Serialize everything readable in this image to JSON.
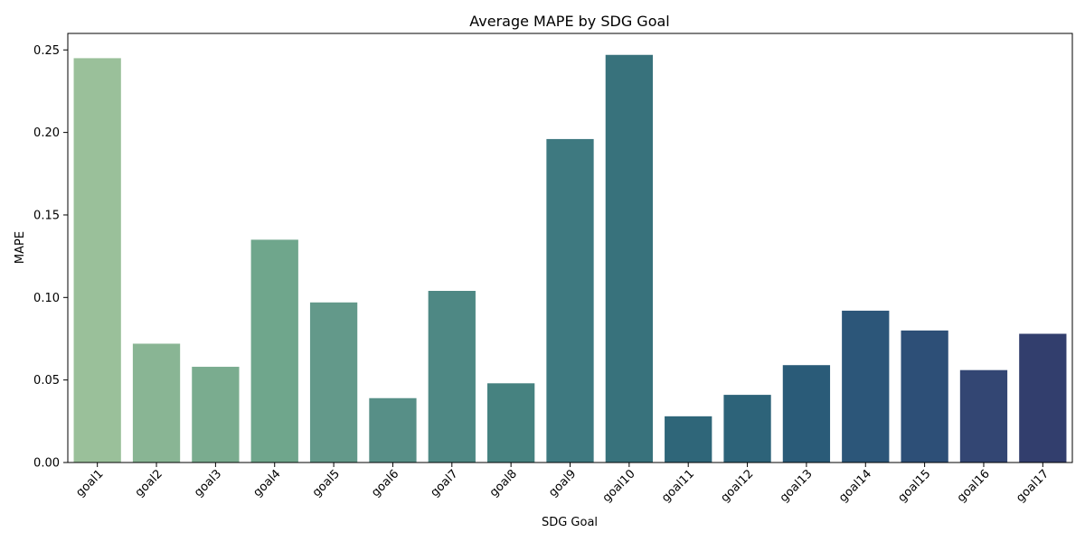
{
  "chart_data": {
    "type": "bar",
    "title": "Average MAPE by SDG Goal",
    "xlabel": "SDG Goal",
    "ylabel": "MAPE",
    "categories": [
      "goal1",
      "goal2",
      "goal3",
      "goal4",
      "goal5",
      "goal6",
      "goal7",
      "goal8",
      "goal9",
      "goal10",
      "goal11",
      "goal12",
      "goal13",
      "goal14",
      "goal15",
      "goal16",
      "goal17"
    ],
    "values": [
      0.245,
      0.072,
      0.058,
      0.135,
      0.097,
      0.039,
      0.104,
      0.048,
      0.196,
      0.247,
      0.028,
      0.041,
      0.059,
      0.092,
      0.08,
      0.056,
      0.078
    ],
    "colors": [
      "#9ac09a",
      "#89b594",
      "#7aac8f",
      "#6fa68c",
      "#63998a",
      "#578f87",
      "#4e8884",
      "#468280",
      "#3e7980",
      "#38727c",
      "#2f6679",
      "#2d6379",
      "#2a5b78",
      "#2c5679",
      "#2d4f77",
      "#334673",
      "#323e6d"
    ],
    "ylim": [
      0,
      0.26
    ],
    "yticks": [
      "0.00",
      "0.05",
      "0.10",
      "0.15",
      "0.20",
      "0.25"
    ],
    "ytick_values": [
      0,
      0.05,
      0.1,
      0.15,
      0.2,
      0.25
    ],
    "grid": false,
    "legend": "none"
  }
}
